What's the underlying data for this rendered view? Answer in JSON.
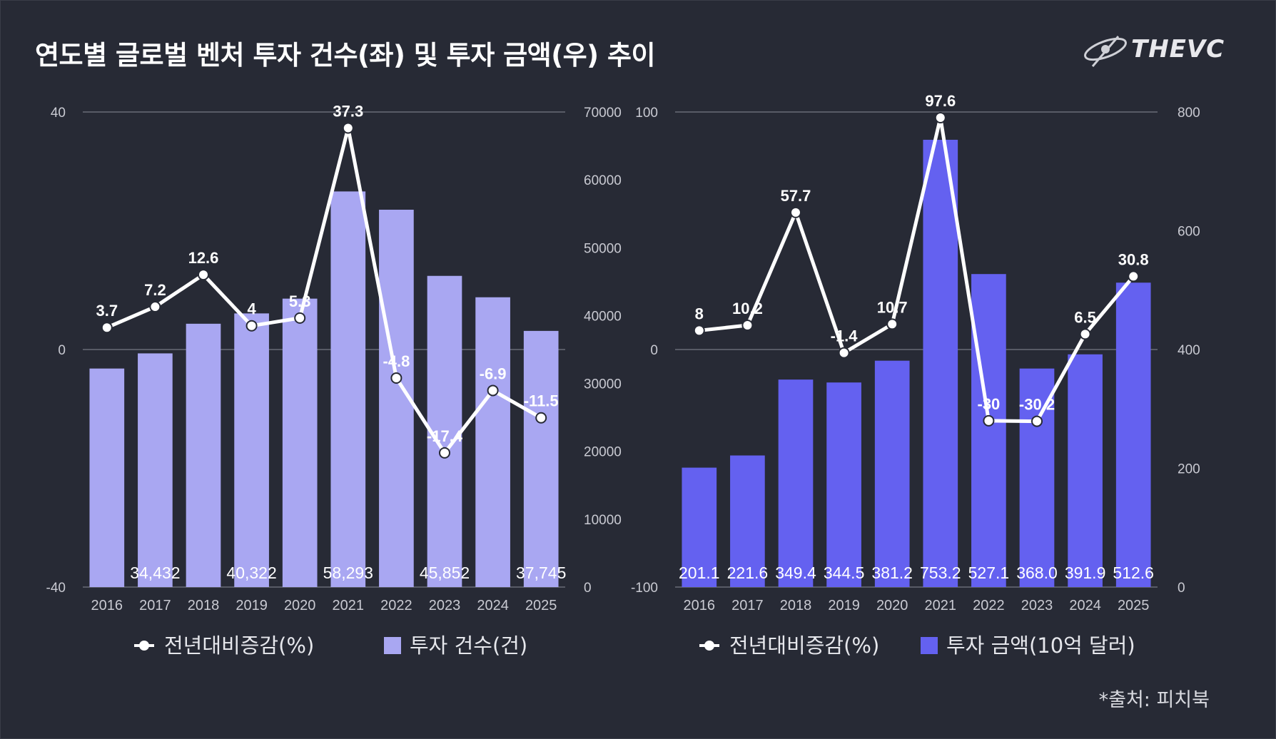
{
  "title": "연도별 글로벌 벤처 투자 건수(좌) 및 투자 금액(우) 추이",
  "logo": "THEVC",
  "source": "*출처: 피치북",
  "colors": {
    "background": "#272a35",
    "bar_left": "#a9a7f2",
    "bar_right": "#6461f0",
    "line": "#ffffff",
    "grid": "#8a8c96"
  },
  "chart_data": [
    {
      "type": "bar+line",
      "title": "투자 건수(건)",
      "categories": [
        "2016",
        "2017",
        "2018",
        "2019",
        "2020",
        "2021",
        "2022",
        "2023",
        "2024",
        "2025"
      ],
      "bar_series": {
        "name": "투자 건수(건)",
        "values": [
          32200,
          34432,
          38800,
          40322,
          42500,
          58293,
          55600,
          45852,
          42700,
          37745
        ],
        "value_labels": [
          "",
          "34,432",
          "",
          "40,322",
          "",
          "58,293",
          "",
          "45,852",
          "",
          "37,745"
        ],
        "axis": "right",
        "ylim": [
          0,
          70000
        ],
        "ticks": [
          "70000",
          "60000",
          "50000",
          "40000",
          "30000",
          "20000",
          "10000",
          "0"
        ]
      },
      "line_series": {
        "name": "전년대비증감(%)",
        "values": [
          3.7,
          7.2,
          12.6,
          4,
          5.3,
          37.3,
          -4.8,
          -17.4,
          -6.9,
          -11.5
        ],
        "labels": [
          "3.7",
          "7.2",
          "12.6",
          "4",
          "5.3",
          "37.3",
          "-4.8",
          "-17.4",
          "-6.9",
          "-11.5"
        ],
        "axis": "left",
        "ylim": [
          -40,
          40
        ],
        "ticks": [
          "40",
          "0",
          "-40"
        ]
      },
      "legend": [
        "전년대비증감(%)",
        "투자 건수(건)"
      ]
    },
    {
      "type": "bar+line",
      "title": "투자 금액(10억 달러)",
      "categories": [
        "2016",
        "2017",
        "2018",
        "2019",
        "2020",
        "2021",
        "2022",
        "2023",
        "2024",
        "2025"
      ],
      "bar_series": {
        "name": "투자 금액(10억 달러)",
        "values": [
          201.1,
          221.6,
          349.4,
          344.5,
          381.2,
          753.2,
          527.1,
          368.0,
          391.9,
          512.6
        ],
        "value_labels": [
          "201.1",
          "221.6",
          "349.4",
          "344.5",
          "381.2",
          "753.2",
          "527.1",
          "368.0",
          "391.9",
          "512.6"
        ],
        "axis": "right",
        "ylim": [
          0,
          800
        ],
        "ticks": [
          "800",
          "600",
          "400",
          "200",
          "0"
        ]
      },
      "line_series": {
        "name": "전년대비증감(%)",
        "values": [
          8,
          10.2,
          57.7,
          -1.4,
          10.7,
          97.6,
          -30,
          -30.2,
          6.5,
          30.8
        ],
        "labels": [
          "8",
          "10.2",
          "57.7",
          "-1.4",
          "10.7",
          "97.6",
          "-30",
          "-30.2",
          "6.5",
          "30.8"
        ],
        "axis": "left",
        "ylim": [
          -100,
          100
        ],
        "ticks": [
          "100",
          "0",
          "-100"
        ]
      },
      "legend": [
        "전년대비증감(%)",
        "투자 금액(10억 달러)"
      ]
    }
  ]
}
